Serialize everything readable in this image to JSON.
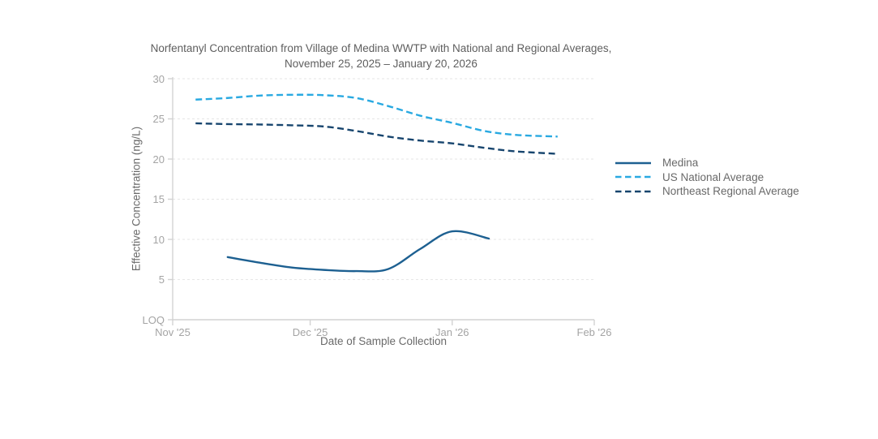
{
  "figure": {
    "background": "#ffffff"
  },
  "chart_data": {
    "type": "line",
    "title": "Norfentanyl Concentration from Village of Medina WWTP with National and Regional Averages,",
    "subtitle": "November 25, 2025 – January 20, 2026",
    "xlabel": "Date of Sample Collection",
    "ylabel": "Effective Concentration (ng/L)",
    "ylim": [
      0,
      30
    ],
    "x_domain": [
      "2025-11-01",
      "2026-02-01"
    ],
    "grid": true,
    "legend_position": "right",
    "y_ticks": [
      {
        "label": "LOQ",
        "value": 0
      },
      {
        "label": "5",
        "value": 5
      },
      {
        "label": "10",
        "value": 10
      },
      {
        "label": "15",
        "value": 15
      },
      {
        "label": "20",
        "value": 20
      },
      {
        "label": "25",
        "value": 25
      },
      {
        "label": "30",
        "value": 30
      }
    ],
    "x_ticks": [
      {
        "label": "Nov '25",
        "date": "2025-11-01"
      },
      {
        "label": "Dec '25",
        "date": "2025-12-01"
      },
      {
        "label": "Jan '26",
        "date": "2026-01-01"
      },
      {
        "label": "Feb '26",
        "date": "2026-02-01"
      }
    ],
    "series": [
      {
        "name": "Medina",
        "color": "#1d6091",
        "line_style": "solid",
        "x": [
          "2025-11-13",
          "2025-11-20",
          "2025-11-27",
          "2025-12-04",
          "2025-12-11",
          "2025-12-18",
          "2025-12-25",
          "2026-01-01",
          "2026-01-09"
        ],
        "values": [
          7.8,
          7.1,
          6.5,
          6.2,
          6.05,
          6.3,
          8.8,
          11.0,
          10.1
        ]
      },
      {
        "name": "US National Average",
        "color": "#29a9e1",
        "line_style": "dashed",
        "x": [
          "2025-11-06",
          "2025-11-13",
          "2025-11-20",
          "2025-11-27",
          "2025-12-04",
          "2025-12-11",
          "2025-12-18",
          "2025-12-25",
          "2026-01-01",
          "2026-01-08",
          "2026-01-15",
          "2026-01-24"
        ],
        "values": [
          27.4,
          27.6,
          27.9,
          28.0,
          27.95,
          27.6,
          26.6,
          25.4,
          24.5,
          23.5,
          23.0,
          22.8
        ]
      },
      {
        "name": "Northeast Regional Average",
        "color": "#17456e",
        "line_style": "dashed",
        "x": [
          "2025-11-06",
          "2025-11-13",
          "2025-11-20",
          "2025-11-27",
          "2025-12-04",
          "2025-12-11",
          "2025-12-18",
          "2025-12-25",
          "2026-01-01",
          "2026-01-08",
          "2026-01-15",
          "2026-01-24"
        ],
        "values": [
          24.45,
          24.35,
          24.3,
          24.2,
          24.05,
          23.5,
          22.8,
          22.3,
          21.95,
          21.4,
          20.95,
          20.65
        ]
      }
    ],
    "colors": {
      "grid": "#e6e6e6",
      "axis_line": "#d2d2d2",
      "tick_label": "#a4a4a4",
      "axis_title": "#6a6a6a",
      "title": "#5e5e5e",
      "legend_text": "#696969"
    }
  }
}
